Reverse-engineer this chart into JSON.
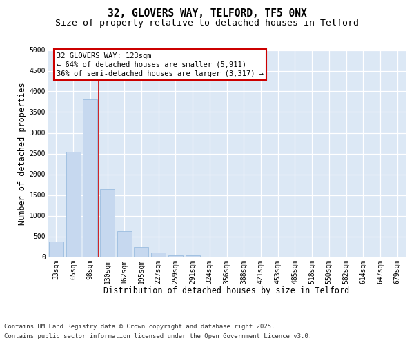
{
  "title_line1": "32, GLOVERS WAY, TELFORD, TF5 0NX",
  "title_line2": "Size of property relative to detached houses in Telford",
  "xlabel": "Distribution of detached houses by size in Telford",
  "ylabel": "Number of detached properties",
  "categories": [
    "33sqm",
    "65sqm",
    "98sqm",
    "130sqm",
    "162sqm",
    "195sqm",
    "227sqm",
    "259sqm",
    "291sqm",
    "324sqm",
    "356sqm",
    "388sqm",
    "421sqm",
    "453sqm",
    "485sqm",
    "518sqm",
    "550sqm",
    "582sqm",
    "614sqm",
    "647sqm",
    "679sqm"
  ],
  "values": [
    380,
    2550,
    3800,
    1650,
    625,
    250,
    110,
    50,
    50,
    0,
    0,
    0,
    0,
    0,
    0,
    0,
    0,
    0,
    0,
    0,
    0
  ],
  "bar_color": "#c6d8ef",
  "bar_edge_color": "#9bbde0",
  "vline_color": "#cc0000",
  "vline_x": 2.5,
  "annotation_text": "32 GLOVERS WAY: 123sqm\n← 64% of detached houses are smaller (5,911)\n36% of semi-detached houses are larger (3,317) →",
  "annotation_box_color": "#ffffff",
  "annotation_box_edge": "#cc0000",
  "ylim": [
    0,
    5000
  ],
  "yticks": [
    0,
    500,
    1000,
    1500,
    2000,
    2500,
    3000,
    3500,
    4000,
    4500,
    5000
  ],
  "bg_color": "#dce8f5",
  "grid_color": "#ffffff",
  "title_fontsize": 10.5,
  "subtitle_fontsize": 9.5,
  "tick_fontsize": 7,
  "label_fontsize": 8.5,
  "footer_fontsize": 6.5,
  "ann_fontsize": 7.5,
  "footer_line1": "Contains HM Land Registry data © Crown copyright and database right 2025.",
  "footer_line2": "Contains public sector information licensed under the Open Government Licence v3.0."
}
